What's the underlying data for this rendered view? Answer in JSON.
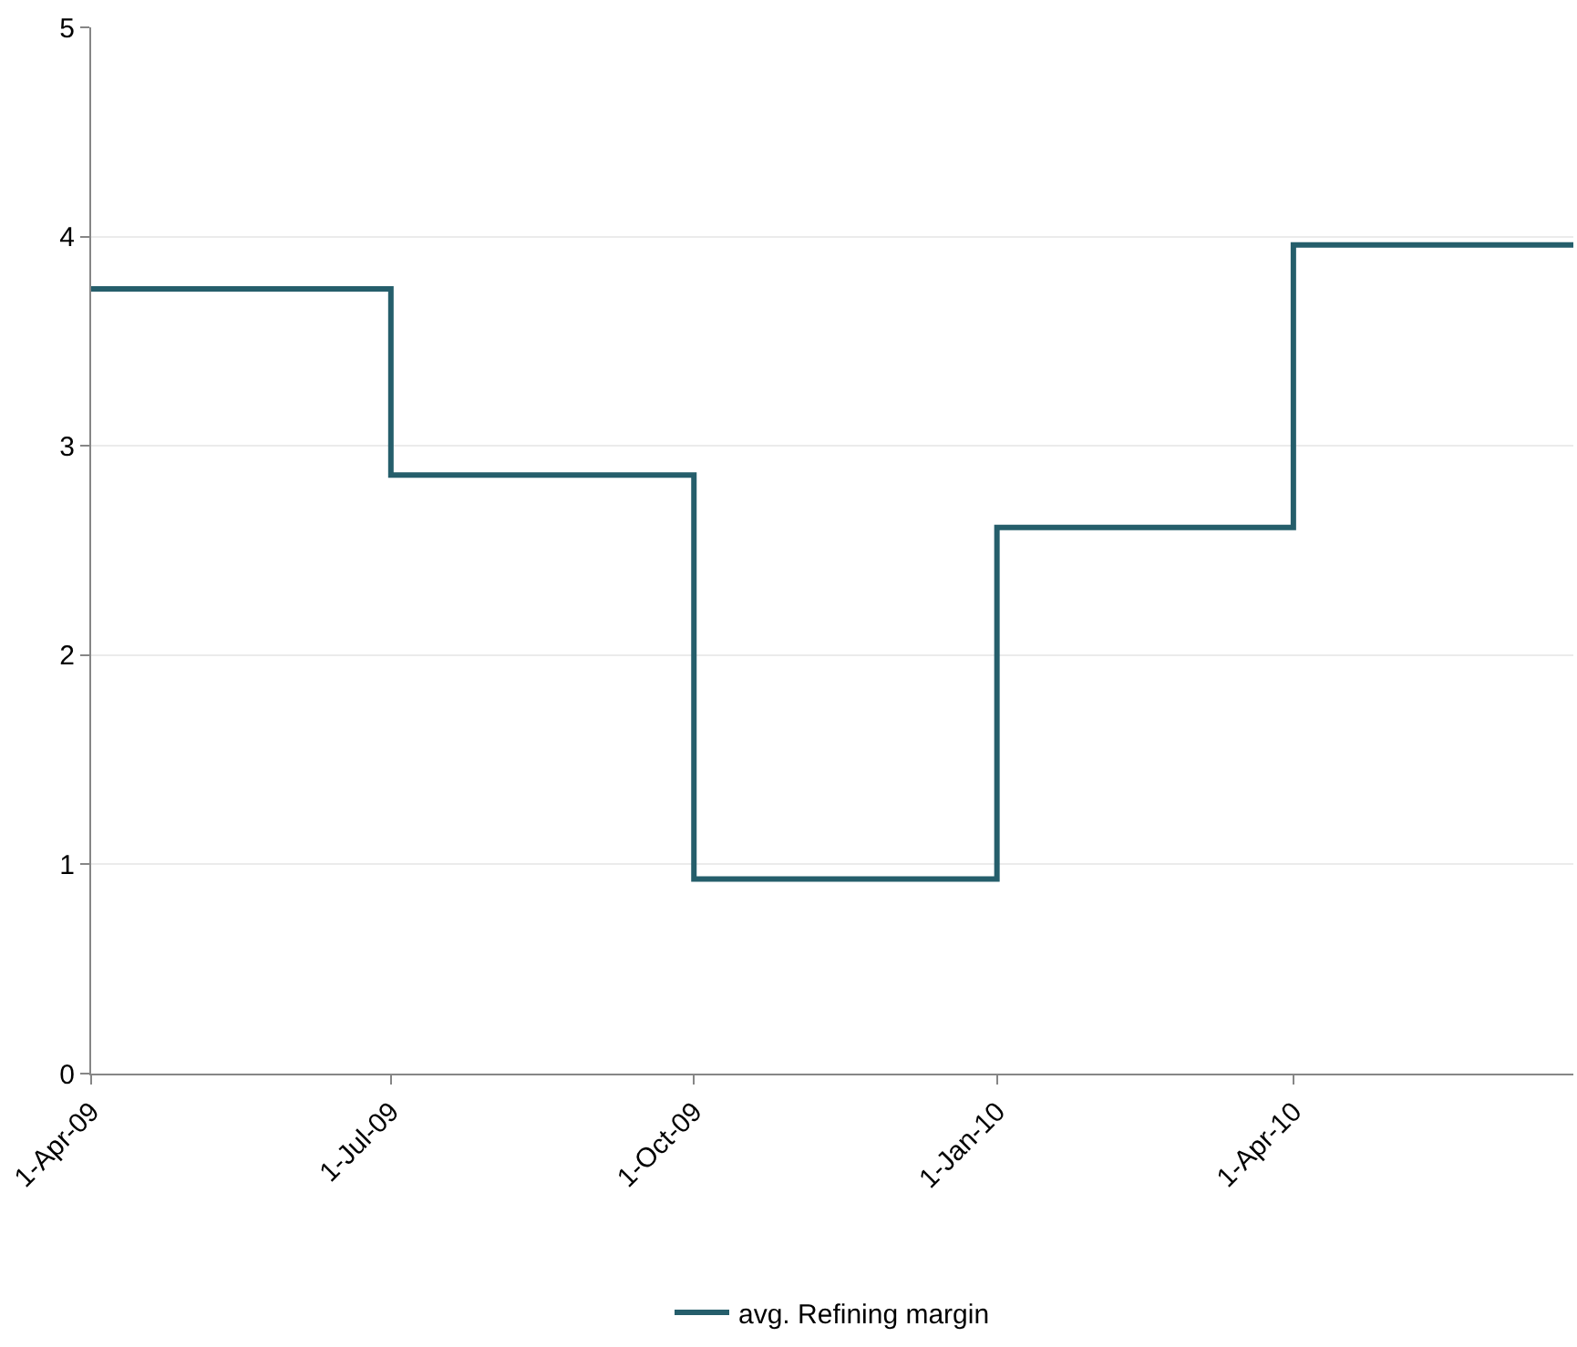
{
  "chart_data": {
    "type": "step",
    "x": [
      "2009-04-01",
      "2009-07-01",
      "2009-10-01",
      "2010-01-01",
      "2010-04-01",
      "2010-06-25"
    ],
    "series": [
      {
        "name": "avg. Refining margin",
        "color": "#255e6b",
        "values": [
          3.75,
          2.86,
          0.93,
          2.61,
          3.96,
          3.96
        ]
      }
    ],
    "xlim": [
      "2009-04-01",
      "2010-06-25"
    ],
    "xticks": [
      {
        "value": "2009-04-01",
        "label": "1-Apr-09"
      },
      {
        "value": "2009-07-01",
        "label": "1-Jul-09"
      },
      {
        "value": "2009-10-01",
        "label": "1-Oct-09"
      },
      {
        "value": "2010-01-01",
        "label": "1-Jan-10"
      },
      {
        "value": "2010-04-01",
        "label": "1-Apr-10"
      }
    ],
    "ylim": [
      0,
      5
    ],
    "yticks": [
      0,
      1,
      2,
      3,
      4,
      5
    ],
    "grid": "y",
    "legend": "bottom",
    "marker": "none",
    "line_style": "solid"
  }
}
